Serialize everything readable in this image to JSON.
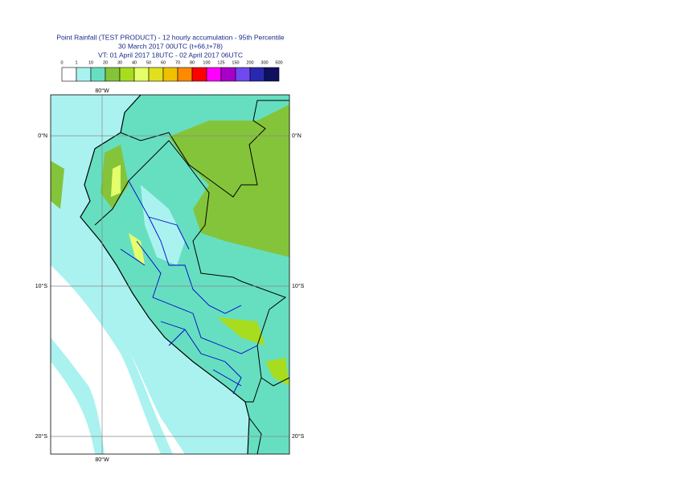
{
  "header": {
    "title": "Point Rainfall (TEST PRODUCT) - 12 hourly accumulation - 95th Percentile",
    "run": "30 March 2017 00UTC (t+66,t+78)",
    "valid": "VT: 01 April 2017 18UTC - 02 April 2017 06UTC"
  },
  "legend": {
    "labels": [
      0,
      1,
      10,
      20,
      30,
      40,
      50,
      60,
      70,
      80,
      100,
      125,
      150,
      200,
      300,
      500
    ],
    "colors": [
      "#ffffff",
      "#aaf2f0",
      "#66dfc0",
      "#84c43a",
      "#a8dc1e",
      "#e4ff6a",
      "#e0e020",
      "#f0c000",
      "#ff8a00",
      "#ff0000",
      "#ff00ff",
      "#a800c8",
      "#7048f0",
      "#2828b0",
      "#101060"
    ]
  },
  "map": {
    "lon_labels": [
      "80°W"
    ],
    "lat_labels": [
      "0°N",
      "10°S",
      "20°S"
    ]
  }
}
